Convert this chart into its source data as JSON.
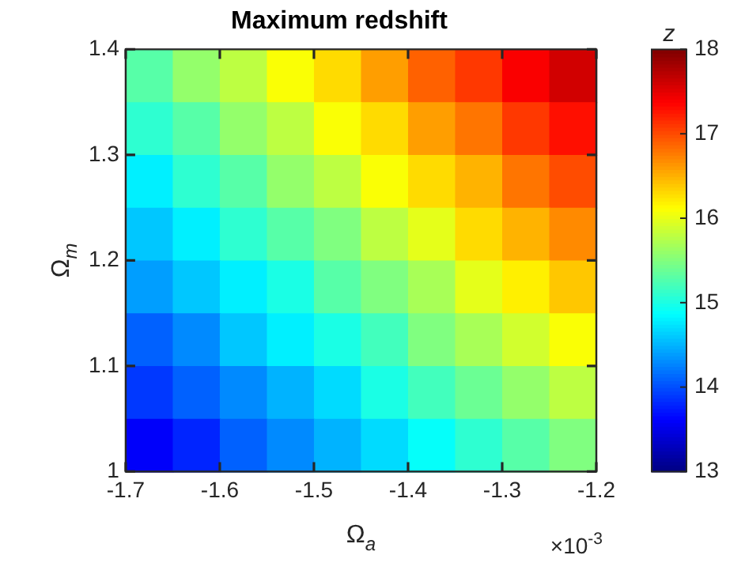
{
  "chart_data": {
    "type": "heatmap",
    "title": "Maximum redshift",
    "xlabel": "Ω$_{a}$",
    "ylabel": "Ω$_{m}$",
    "clabel": "z",
    "xlim": [
      -1.7,
      -1.2
    ],
    "xticks": [
      -1.7,
      -1.6,
      -1.5,
      -1.4,
      -1.3,
      -1.2
    ],
    "ylim": [
      1,
      1.4
    ],
    "yticks": [
      1,
      1.1,
      1.2,
      1.3,
      1.4
    ],
    "clim": [
      13,
      18
    ],
    "cticks": [
      13,
      14,
      15,
      16,
      17,
      18
    ],
    "annotations": [
      "×10$^{-3}$"
    ],
    "grid": false,
    "cells": [
      [
        15.3,
        15.6,
        15.8,
        16.1,
        16.3,
        16.6,
        16.9,
        17.1,
        17.4,
        17.6
      ],
      [
        15.1,
        15.3,
        15.6,
        15.8,
        16.1,
        16.3,
        16.6,
        16.8,
        17.1,
        17.3
      ],
      [
        14.8,
        15.1,
        15.3,
        15.6,
        15.8,
        16.1,
        16.3,
        16.5,
        16.8,
        17.0
      ],
      [
        14.6,
        14.8,
        15.1,
        15.3,
        15.5,
        15.8,
        16.0,
        16.3,
        16.5,
        16.7
      ],
      [
        14.4,
        14.6,
        14.8,
        15.0,
        15.3,
        15.5,
        15.7,
        16.0,
        16.2,
        16.4
      ],
      [
        14.1,
        14.3,
        14.6,
        14.8,
        15.0,
        15.2,
        15.5,
        15.7,
        15.9,
        16.1
      ],
      [
        13.9,
        14.1,
        14.3,
        14.5,
        14.7,
        15.0,
        15.2,
        15.4,
        15.6,
        15.8
      ],
      [
        13.6,
        13.8,
        14.1,
        14.3,
        14.5,
        14.7,
        14.9,
        15.1,
        15.3,
        15.5
      ]
    ]
  }
}
